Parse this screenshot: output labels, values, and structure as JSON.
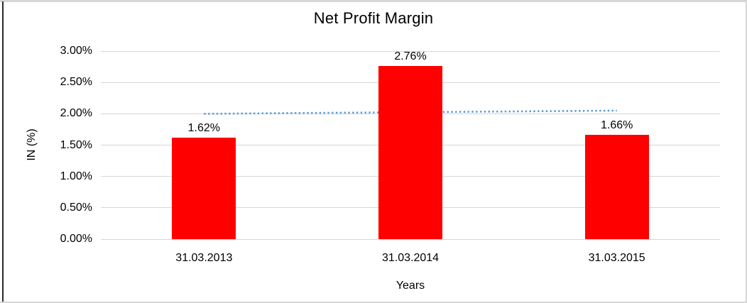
{
  "chart_data": {
    "type": "bar",
    "title": "Net Profit Margin",
    "xlabel": "Years",
    "ylabel": "IN (%)",
    "categories": [
      "31.03.2013",
      "31.03.2014",
      "31.03.2015"
    ],
    "values": [
      1.62,
      2.76,
      1.66
    ],
    "bar_labels": [
      "1.62%",
      "2.76%",
      "1.66%"
    ],
    "ylim": [
      0,
      3
    ],
    "y_ticks": {
      "values": [
        0,
        0.5,
        1,
        1.5,
        2,
        2.5,
        3
      ],
      "labels": [
        "0.00%",
        "0.50%",
        "1.00%",
        "1.50%",
        "2.00%",
        "2.50%",
        "3.00%"
      ]
    },
    "grid": "horizontal",
    "legend_position": "none",
    "trendline": {
      "style": "dotted",
      "start_value": 2.0,
      "end_value": 2.05,
      "color": "#5b9bd5"
    },
    "colors": {
      "bar": "#ff0000",
      "gridline": "#d6d6d6",
      "text": "#000000",
      "trendline": "#5b9bd5"
    }
  }
}
